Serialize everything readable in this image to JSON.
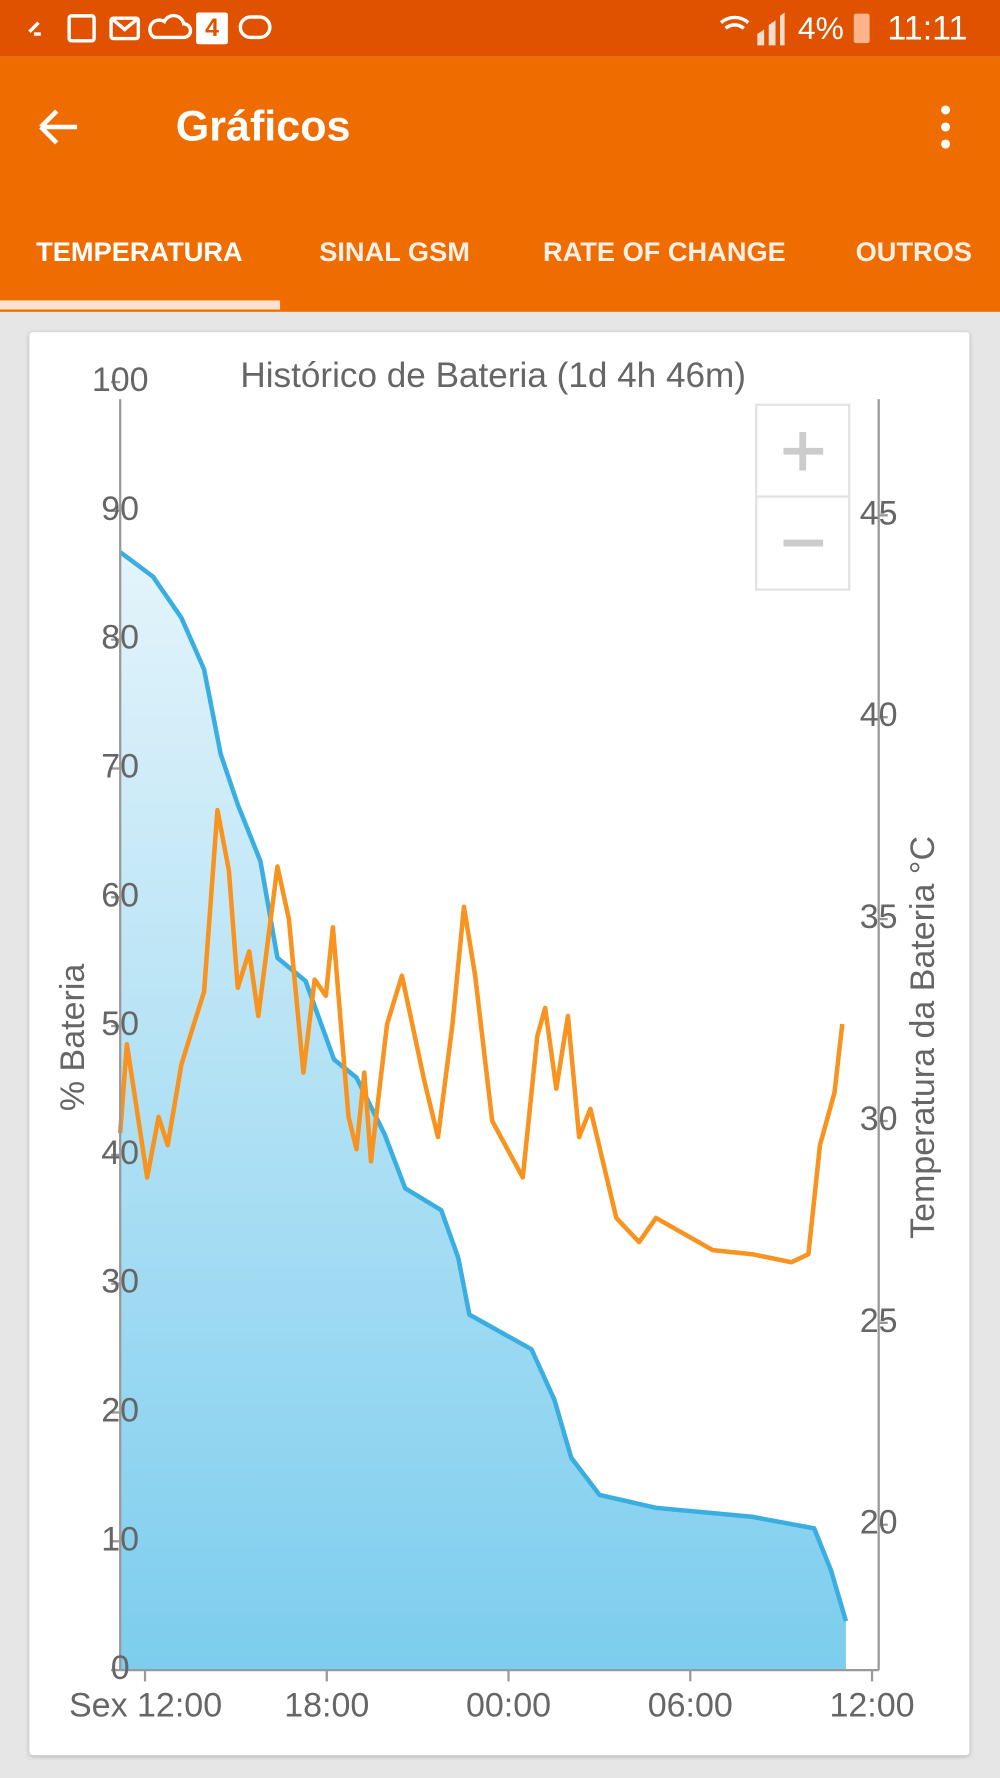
{
  "status_bar": {
    "notification_count": "4",
    "battery": "4%",
    "time": "11:11"
  },
  "app_bar": {
    "title": "Gráficos"
  },
  "tabs": [
    "TEMPERATURA",
    "SINAL GSM",
    "RATE OF CHANGE",
    "OUTROS"
  ],
  "chart_data": {
    "type": "line",
    "title": "Histórico de Bateria (1d 4h 46m)",
    "ylabel": "% Bateria",
    "y2label": "Temperatura da Bateria °C",
    "xlim": [
      11.18,
      36.22
    ],
    "xticks": [
      {
        "value": 12,
        "label": "Sex 12:00"
      },
      {
        "value": 18,
        "label": "18:00"
      },
      {
        "value": 24,
        "label": "00:00"
      },
      {
        "value": 30,
        "label": "06:00"
      },
      {
        "value": 36,
        "label": "12:00"
      }
    ],
    "ylim": [
      0,
      100
    ],
    "yticks": [
      0,
      10,
      20,
      30,
      40,
      50,
      60,
      70,
      80,
      90,
      100
    ],
    "y2lim": [
      16.4,
      48.3
    ],
    "y2ticks": [
      20,
      25,
      30,
      35,
      40,
      45
    ],
    "series": [
      {
        "color": "#3aaee0",
        "area": true,
        "x": [
          11.18,
          12.26,
          13.2,
          13.95,
          14.5,
          15.06,
          15.81,
          16.37,
          17.3,
          18.24,
          18.98,
          19.91,
          20.59,
          21.78,
          22.34,
          22.71,
          24.76,
          25.51,
          26.07,
          27.0,
          28.87,
          32.04,
          34.09,
          34.65,
          35.14
        ],
        "values": [
          86.8,
          84.9,
          81.7,
          77.7,
          71.1,
          67.2,
          62.8,
          55.3,
          53.5,
          47.4,
          46.0,
          41.6,
          37.4,
          35.7,
          32.0,
          27.6,
          24.9,
          21.0,
          16.5,
          13.6,
          12.6,
          11.9,
          11.0,
          7.7,
          3.8
        ]
      },
      {
        "color": "#f7931e",
        "axis": "y2",
        "x": [
          11.18,
          11.4,
          12.07,
          12.45,
          12.75,
          13.2,
          13.57,
          13.95,
          14.39,
          14.77,
          15.06,
          15.44,
          15.74,
          16.37,
          16.75,
          17.23,
          17.6,
          17.97,
          18.2,
          18.72,
          18.98,
          19.24,
          19.46,
          19.99,
          20.48,
          21.22,
          21.67,
          22.15,
          22.53,
          22.9,
          23.46,
          24.47,
          24.95,
          25.21,
          25.58,
          25.96,
          26.33,
          26.7,
          27.56,
          28.31,
          28.87,
          30.74,
          32.04,
          33.34,
          33.9,
          34.28,
          34.76,
          35.02
        ],
        "values": [
          29.7,
          31.9,
          28.6,
          30.1,
          29.4,
          31.4,
          32.3,
          33.2,
          37.7,
          36.2,
          33.3,
          34.2,
          32.6,
          36.3,
          35.0,
          31.2,
          33.5,
          33.1,
          34.8,
          30.1,
          29.3,
          31.2,
          29.0,
          32.4,
          33.6,
          31.0,
          29.6,
          32.4,
          35.3,
          33.6,
          30.0,
          28.6,
          32.1,
          32.8,
          30.8,
          32.6,
          29.6,
          30.3,
          27.6,
          27.0,
          27.6,
          26.8,
          26.7,
          26.5,
          26.7,
          29.4,
          30.7,
          32.4
        ]
      }
    ]
  }
}
